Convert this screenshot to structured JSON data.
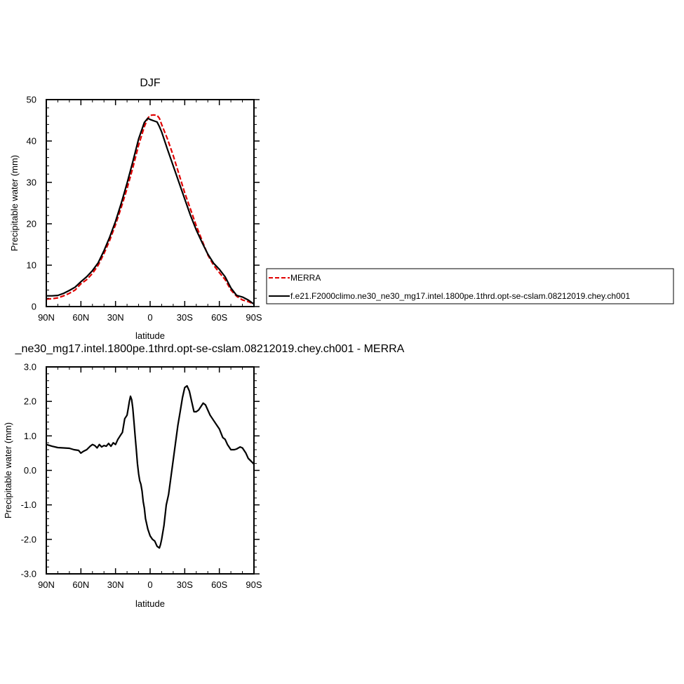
{
  "chart_data": [
    {
      "type": "line",
      "title": "DJF",
      "xlabel": "latitude",
      "ylabel": "Precipitable water (mm)",
      "xlim": [
        90,
        -90
      ],
      "ylim": [
        0,
        50
      ],
      "x_ticks": [
        90,
        60,
        30,
        0,
        -30,
        -60,
        -90
      ],
      "x_tick_labels": [
        "90N",
        "60N",
        "30N",
        "0",
        "30S",
        "60S",
        "90S"
      ],
      "y_ticks": [
        0,
        10,
        20,
        30,
        40,
        50
      ],
      "y_tick_labels": [
        "0",
        "10",
        "20",
        "30",
        "40",
        "50"
      ],
      "grid": false,
      "legend": "right",
      "series": [
        {
          "name": "MERRA",
          "color": "#e00000",
          "dash": true,
          "x": [
            90,
            85,
            80,
            75,
            70,
            65,
            60,
            55,
            50,
            45,
            40,
            35,
            30,
            25,
            20,
            15,
            10,
            5,
            2,
            0,
            -3,
            -6,
            -8,
            -10,
            -15,
            -20,
            -25,
            -30,
            -35,
            -40,
            -45,
            -50,
            -55,
            -60,
            -65,
            -70,
            -75,
            -80,
            -85,
            -90
          ],
          "y": [
            1.8,
            1.9,
            2.1,
            2.6,
            3.2,
            4.0,
            5.5,
            6.5,
            8.0,
            10.0,
            12.8,
            16.0,
            19.8,
            24.0,
            28.5,
            33.5,
            39.0,
            43.5,
            45.5,
            46.2,
            46.3,
            46.2,
            45.5,
            44.0,
            40.5,
            36.5,
            32.0,
            27.5,
            23.5,
            19.5,
            16.0,
            12.5,
            10.0,
            8.2,
            6.5,
            4.0,
            2.5,
            1.6,
            1.2,
            0.6
          ]
        },
        {
          "name": "f.e21.F2000climo.ne30_ne30_mg17.intel.1800pe.1thrd.opt-se-cslam.08212019.chey.ch001",
          "color": "#000000",
          "dash": false,
          "x": [
            90,
            85,
            80,
            75,
            70,
            65,
            60,
            55,
            50,
            45,
            40,
            35,
            30,
            25,
            20,
            15,
            10,
            5,
            2,
            0,
            -3,
            -6,
            -8,
            -10,
            -15,
            -20,
            -25,
            -30,
            -35,
            -40,
            -45,
            -50,
            -55,
            -60,
            -65,
            -70,
            -75,
            -80,
            -85,
            -90
          ],
          "y": [
            2.6,
            2.6,
            2.7,
            3.2,
            3.9,
            4.7,
            6.0,
            7.2,
            8.7,
            10.6,
            13.5,
            16.8,
            20.6,
            25.0,
            29.8,
            35.0,
            40.5,
            44.5,
            45.5,
            45.2,
            44.9,
            44.6,
            43.5,
            42.2,
            38.0,
            34.0,
            30.0,
            26.0,
            22.0,
            18.5,
            15.5,
            12.7,
            10.5,
            9.0,
            7.2,
            4.5,
            2.7,
            2.3,
            1.6,
            0.6
          ]
        }
      ]
    },
    {
      "type": "line",
      "title": "_ne30_mg17.intel.1800pe.1thrd.opt-se-cslam.08212019.chey.ch001 - MERRA",
      "xlabel": "latitude",
      "ylabel": "Precipitable water (mm)",
      "xlim": [
        90,
        -90
      ],
      "ylim": [
        -3.0,
        3.0
      ],
      "x_ticks": [
        90,
        60,
        30,
        0,
        -30,
        -60,
        -90
      ],
      "x_tick_labels": [
        "90N",
        "60N",
        "30N",
        "0",
        "30S",
        "60S",
        "90S"
      ],
      "y_ticks": [
        -3,
        -2,
        -1,
        0,
        1,
        2,
        3
      ],
      "y_tick_labels": [
        "-3.0",
        "-2.0",
        "-1.0",
        "0.0",
        "1.0",
        "2.0",
        "3.0"
      ],
      "grid": false,
      "series": [
        {
          "name": "",
          "color": "#000000",
          "dash": false,
          "x": [
            90,
            85,
            80,
            75,
            70,
            66,
            62,
            60,
            58,
            55,
            52,
            50,
            48,
            46,
            44,
            42,
            40,
            38,
            36,
            34,
            32,
            30,
            28,
            26,
            24,
            22,
            20,
            19,
            18,
            17,
            16,
            15,
            14,
            13,
            12,
            11,
            10,
            9,
            8,
            7,
            6,
            5,
            4,
            2,
            0,
            -2,
            -4,
            -6,
            -8,
            -9,
            -10,
            -12,
            -14,
            -16,
            -18,
            -20,
            -22,
            -24,
            -26,
            -28,
            -30,
            -32,
            -34,
            -36,
            -38,
            -40,
            -42,
            -44,
            -46,
            -48,
            -50,
            -52,
            -55,
            -58,
            -60,
            -63,
            -65,
            -67,
            -70,
            -73,
            -75,
            -78,
            -80,
            -83,
            -85,
            -88,
            -90
          ],
          "y": [
            0.75,
            0.7,
            0.66,
            0.65,
            0.64,
            0.6,
            0.58,
            0.5,
            0.55,
            0.6,
            0.7,
            0.75,
            0.72,
            0.65,
            0.75,
            0.68,
            0.72,
            0.7,
            0.78,
            0.7,
            0.8,
            0.75,
            0.9,
            1.0,
            1.1,
            1.5,
            1.6,
            1.8,
            2.0,
            2.15,
            2.05,
            1.8,
            1.4,
            1.0,
            0.6,
            0.2,
            -0.1,
            -0.3,
            -0.4,
            -0.6,
            -0.9,
            -1.1,
            -1.4,
            -1.7,
            -1.9,
            -2.0,
            -2.05,
            -2.2,
            -2.25,
            -2.15,
            -2.0,
            -1.6,
            -1.0,
            -0.7,
            -0.2,
            0.3,
            0.8,
            1.3,
            1.7,
            2.1,
            2.4,
            2.45,
            2.3,
            2.0,
            1.7,
            1.7,
            1.75,
            1.85,
            1.95,
            1.9,
            1.75,
            1.6,
            1.45,
            1.3,
            1.2,
            0.95,
            0.9,
            0.75,
            0.6,
            0.6,
            0.62,
            0.68,
            0.65,
            0.5,
            0.35,
            0.25,
            0.18
          ]
        }
      ]
    }
  ]
}
